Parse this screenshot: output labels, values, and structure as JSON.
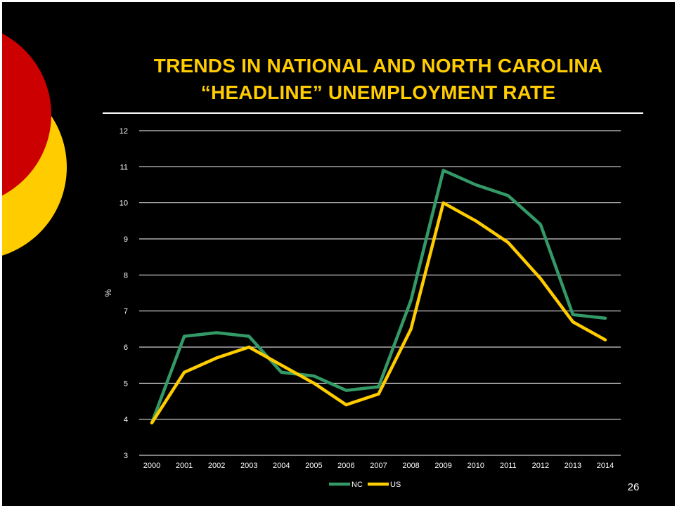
{
  "slide": {
    "title_lines": [
      "TRENDS IN NATIONAL AND NORTH CAROLINA",
      "“HEADLINE” UNEMPLOYMENT RATE"
    ],
    "page_number": "26"
  },
  "colors": {
    "background": "#000000",
    "title": "#FFCC00",
    "gridline": "#FFFFFF",
    "axis_text": "#FFFFFF",
    "deco_red": "#CC0000",
    "deco_yellow": "#FFCC00"
  },
  "chart_data": {
    "type": "line",
    "ylabel": "%",
    "xlabel": "",
    "ylim": [
      3,
      12
    ],
    "yticks": [
      3,
      4,
      5,
      6,
      7,
      8,
      9,
      10,
      11,
      12
    ],
    "x": [
      "2000",
      "2001",
      "2002",
      "2003",
      "2004",
      "2005",
      "2006",
      "2007",
      "2008",
      "2009",
      "2010",
      "2011",
      "2012",
      "2013",
      "2014"
    ],
    "grid": true,
    "legend_position": "bottom",
    "series": [
      {
        "name": "NC",
        "color": "#339966",
        "values": [
          3.9,
          6.3,
          6.4,
          6.3,
          5.3,
          5.2,
          4.8,
          4.9,
          7.3,
          10.9,
          10.5,
          10.2,
          9.4,
          6.9,
          6.8
        ]
      },
      {
        "name": "US",
        "color": "#FFCC00",
        "values": [
          3.9,
          5.3,
          5.7,
          6.0,
          5.5,
          5.0,
          4.4,
          4.7,
          6.5,
          10.0,
          9.5,
          8.9,
          7.9,
          6.7,
          6.2
        ]
      }
    ]
  }
}
